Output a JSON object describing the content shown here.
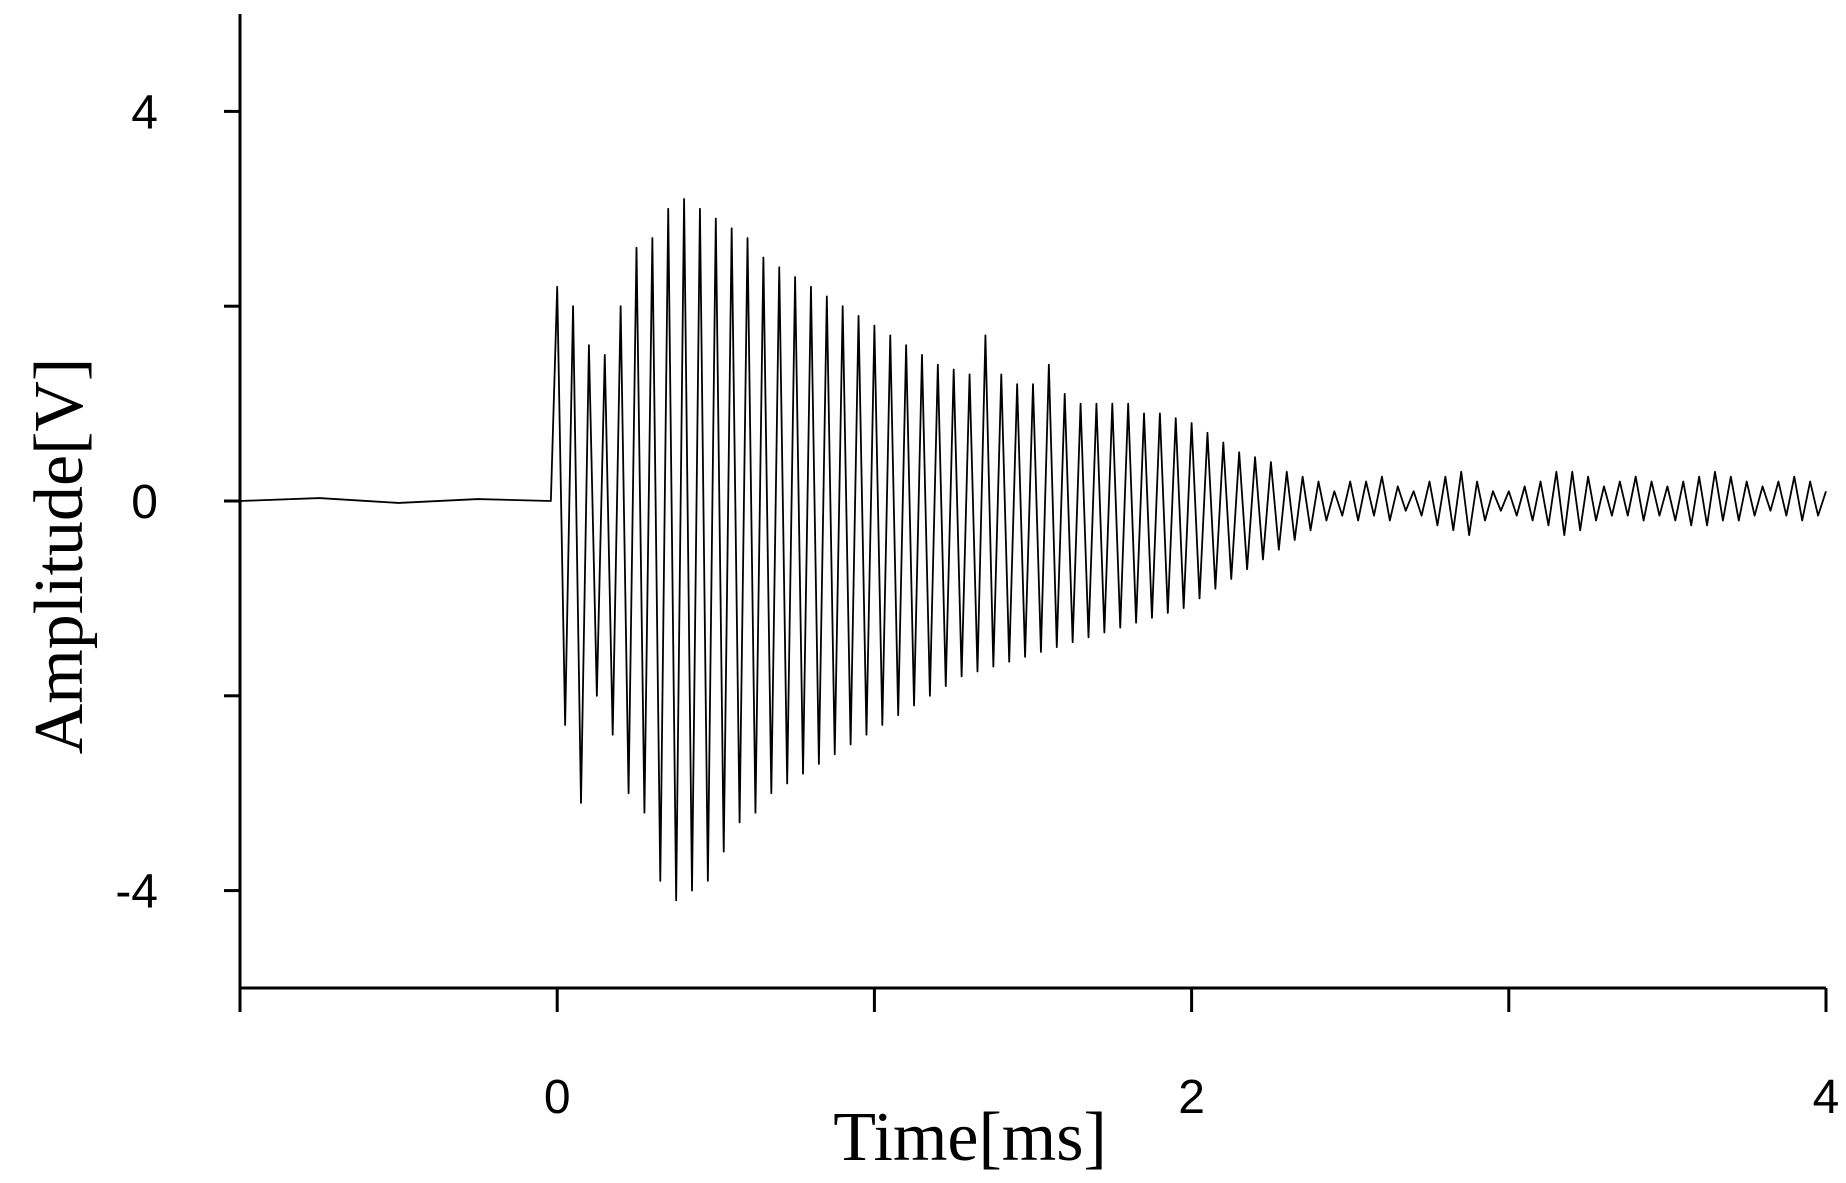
{
  "chart_data": {
    "type": "line",
    "x_label": "Time[ms]",
    "y_label": "Amplitude[V]",
    "xlim": [
      -1,
      4
    ],
    "xticks": [
      0,
      2,
      4
    ],
    "xminor_ticks": [
      -1,
      1,
      3
    ],
    "ylim": [
      -5,
      5
    ],
    "yticks": [
      -4,
      0,
      4
    ],
    "yminor_ticks": [
      -2,
      2
    ],
    "grid": false,
    "x": [
      -1,
      -0.75,
      -0.5,
      -0.25,
      -0.02,
      0,
      0.025,
      0.05,
      0.075,
      0.1,
      0.125,
      0.15,
      0.175,
      0.2,
      0.225,
      0.25,
      0.275,
      0.3,
      0.325,
      0.35,
      0.375,
      0.4,
      0.425,
      0.45,
      0.475,
      0.5,
      0.525,
      0.55,
      0.575,
      0.6,
      0.625,
      0.65,
      0.675,
      0.7,
      0.725,
      0.75,
      0.775,
      0.8,
      0.825,
      0.85,
      0.875,
      0.9,
      0.925,
      0.95,
      0.975,
      1,
      1.025,
      1.05,
      1.075,
      1.1,
      1.125,
      1.15,
      1.175,
      1.2,
      1.225,
      1.25,
      1.275,
      1.3,
      1.325,
      1.35,
      1.375,
      1.4,
      1.425,
      1.45,
      1.475,
      1.5,
      1.525,
      1.55,
      1.575,
      1.6,
      1.625,
      1.65,
      1.675,
      1.7,
      1.725,
      1.75,
      1.775,
      1.8,
      1.825,
      1.85,
      1.875,
      1.9,
      1.925,
      1.95,
      1.975,
      2,
      2.025,
      2.05,
      2.075,
      2.1,
      2.125,
      2.15,
      2.175,
      2.2,
      2.225,
      2.25,
      2.275,
      2.3,
      2.325,
      2.35,
      2.375,
      2.4,
      2.425,
      2.45,
      2.475,
      2.5,
      2.525,
      2.55,
      2.575,
      2.6,
      2.625,
      2.65,
      2.675,
      2.7,
      2.725,
      2.75,
      2.775,
      2.8,
      2.825,
      2.85,
      2.875,
      2.9,
      2.925,
      2.95,
      2.975,
      3,
      3.025,
      3.05,
      3.075,
      3.1,
      3.125,
      3.15,
      3.175,
      3.2,
      3.225,
      3.25,
      3.275,
      3.3,
      3.325,
      3.35,
      3.375,
      3.4,
      3.425,
      3.45,
      3.475,
      3.5,
      3.525,
      3.55,
      3.575,
      3.6,
      3.625,
      3.65,
      3.675,
      3.7,
      3.725,
      3.75,
      3.775,
      3.8,
      3.825,
      3.85,
      3.875,
      3.9,
      3.925,
      3.95,
      3.975,
      4
    ],
    "series": [
      {
        "color": "#000000",
        "values": [
          0,
          0.03,
          -0.02,
          0.02,
          0,
          2.2,
          -2.3,
          2.0,
          -3.1,
          1.6,
          -2.0,
          1.5,
          -2.4,
          2.0,
          -3.0,
          2.6,
          -3.2,
          2.7,
          -3.9,
          3.0,
          -4.1,
          3.1,
          -4.0,
          3.0,
          -3.9,
          2.9,
          -3.6,
          2.8,
          -3.3,
          2.7,
          -3.2,
          2.5,
          -3.0,
          2.4,
          -2.9,
          2.3,
          -2.8,
          2.2,
          -2.7,
          2.1,
          -2.6,
          2.0,
          -2.5,
          1.9,
          -2.4,
          1.8,
          -2.3,
          1.7,
          -2.2,
          1.6,
          -2.1,
          1.5,
          -2.0,
          1.4,
          -1.9,
          1.35,
          -1.8,
          1.3,
          -1.75,
          1.7,
          -1.7,
          1.3,
          -1.65,
          1.2,
          -1.6,
          1.2,
          -1.55,
          1.4,
          -1.5,
          1.1,
          -1.45,
          1.0,
          -1.4,
          1.0,
          -1.35,
          1.0,
          -1.3,
          1.0,
          -1.25,
          0.9,
          -1.2,
          0.9,
          -1.15,
          0.85,
          -1.1,
          0.8,
          -1.0,
          0.7,
          -0.9,
          0.6,
          -0.8,
          0.5,
          -0.7,
          0.45,
          -0.6,
          0.4,
          -0.5,
          0.3,
          -0.4,
          0.25,
          -0.3,
          0.2,
          -0.2,
          0.1,
          -0.15,
          0.2,
          -0.2,
          0.2,
          -0.15,
          0.25,
          -0.2,
          0.15,
          -0.1,
          0.1,
          -0.15,
          0.2,
          -0.25,
          0.25,
          -0.3,
          0.3,
          -0.35,
          0.2,
          -0.2,
          0.1,
          -0.1,
          0.1,
          -0.15,
          0.15,
          -0.2,
          0.2,
          -0.25,
          0.3,
          -0.35,
          0.3,
          -0.3,
          0.25,
          -0.2,
          0.15,
          -0.15,
          0.2,
          -0.15,
          0.25,
          -0.2,
          0.2,
          -0.15,
          0.15,
          -0.2,
          0.2,
          -0.25,
          0.25,
          -0.25,
          0.3,
          -0.2,
          0.25,
          -0.2,
          0.2,
          -0.15,
          0.15,
          -0.1,
          0.2,
          -0.15,
          0.25,
          -0.2,
          0.2,
          -0.15,
          0.1
        ]
      }
    ]
  }
}
